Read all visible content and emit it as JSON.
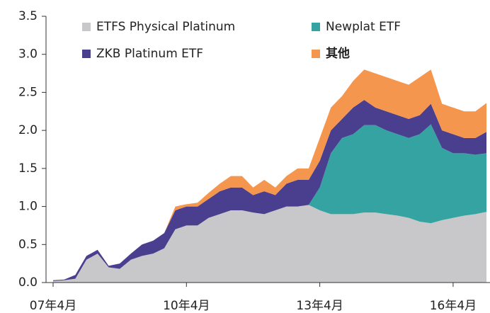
{
  "chart_data": {
    "type": "stacked-area",
    "categories": [
      "07年4月",
      null,
      null,
      null,
      null,
      null,
      null,
      null,
      null,
      null,
      null,
      null,
      "10年4月",
      null,
      null,
      null,
      null,
      null,
      null,
      null,
      null,
      null,
      null,
      null,
      "13年4月",
      null,
      null,
      null,
      null,
      null,
      null,
      null,
      null,
      null,
      null,
      null,
      "16年4月",
      null,
      null,
      null
    ],
    "series": [
      {
        "name": "ETFS Physical Platinum",
        "color": "#c8c8ca",
        "values": [
          0.02,
          0.03,
          0.05,
          0.3,
          0.38,
          0.2,
          0.18,
          0.3,
          0.35,
          0.38,
          0.45,
          0.7,
          0.75,
          0.75,
          0.85,
          0.9,
          0.95,
          0.95,
          0.92,
          0.9,
          0.95,
          1.0,
          1.0,
          1.02,
          0.95,
          0.9,
          0.9,
          0.9,
          0.92,
          0.92,
          0.9,
          0.88,
          0.85,
          0.8,
          0.78,
          0.82,
          0.85,
          0.88,
          0.9,
          0.93
        ]
      },
      {
        "name": "Newplat ETF",
        "color": "#36a3a3",
        "values": [
          0,
          0,
          0,
          0,
          0,
          0,
          0,
          0,
          0,
          0,
          0,
          0,
          0,
          0,
          0,
          0,
          0,
          0,
          0,
          0,
          0,
          0,
          0,
          0,
          0.3,
          0.8,
          1.0,
          1.05,
          1.15,
          1.15,
          1.1,
          1.07,
          1.05,
          1.15,
          1.3,
          0.95,
          0.85,
          0.82,
          0.78,
          0.77
        ]
      },
      {
        "name": "ZKB Platinum ETF",
        "color": "#4a3f8f",
        "values": [
          0.01,
          0.01,
          0.05,
          0.05,
          0.05,
          0.02,
          0.07,
          0.08,
          0.15,
          0.17,
          0.2,
          0.25,
          0.25,
          0.25,
          0.25,
          0.3,
          0.3,
          0.3,
          0.23,
          0.3,
          0.2,
          0.3,
          0.35,
          0.33,
          0.35,
          0.3,
          0.25,
          0.35,
          0.33,
          0.23,
          0.25,
          0.25,
          0.25,
          0.25,
          0.27,
          0.23,
          0.25,
          0.2,
          0.22,
          0.28
        ]
      },
      {
        "name": "其他",
        "color": "#f5964f",
        "values": [
          0,
          0,
          0,
          0,
          0,
          0,
          0,
          0,
          0,
          0,
          0,
          0.05,
          0.03,
          0.05,
          0.08,
          0.1,
          0.15,
          0.15,
          0.1,
          0.15,
          0.1,
          0.1,
          0.15,
          0.15,
          0.3,
          0.3,
          0.3,
          0.35,
          0.4,
          0.45,
          0.45,
          0.45,
          0.45,
          0.5,
          0.45,
          0.35,
          0.35,
          0.35,
          0.35,
          0.38
        ]
      }
    ],
    "ylim": [
      0,
      3.5
    ],
    "yticks": [
      {
        "value": 0,
        "label": "0.0"
      },
      0.5,
      {
        "value": 1,
        "label": "1.0"
      },
      1.5,
      {
        "value": 2,
        "label": "2.0"
      },
      2.5,
      {
        "value": 3,
        "label": "3.0"
      },
      3.5
    ],
    "grid": false
  }
}
